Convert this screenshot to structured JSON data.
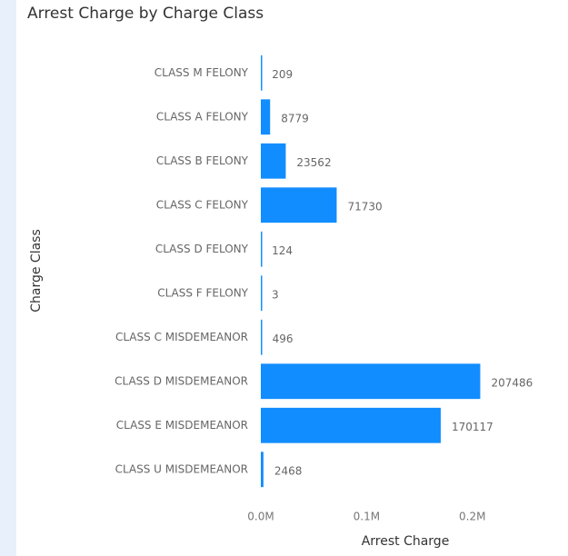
{
  "chart_data": {
    "type": "bar",
    "orientation": "horizontal",
    "title": "Arrest Charge by Charge Class",
    "x_label": "Arrest Charge",
    "y_label": "Charge Class",
    "categories": [
      "CLASS M FELONY",
      "CLASS A FELONY",
      "CLASS B FELONY",
      "CLASS C FELONY",
      "CLASS D FELONY",
      "CLASS F FELONY",
      "CLASS C MISDEMEANOR",
      "CLASS D MISDEMEANOR",
      "CLASS E MISDEMEANOR",
      "CLASS U MISDEMEANOR"
    ],
    "values": [
      209,
      8779,
      23562,
      71730,
      124,
      3,
      496,
      207486,
      170117,
      2468
    ],
    "color": "#118dff",
    "xlim": [
      0,
      220000
    ],
    "xticks": [
      {
        "value": 0,
        "label": "0.0M"
      },
      {
        "value": 100000,
        "label": "0.1M"
      },
      {
        "value": 200000,
        "label": "0.2M"
      }
    ],
    "grid": false
  }
}
